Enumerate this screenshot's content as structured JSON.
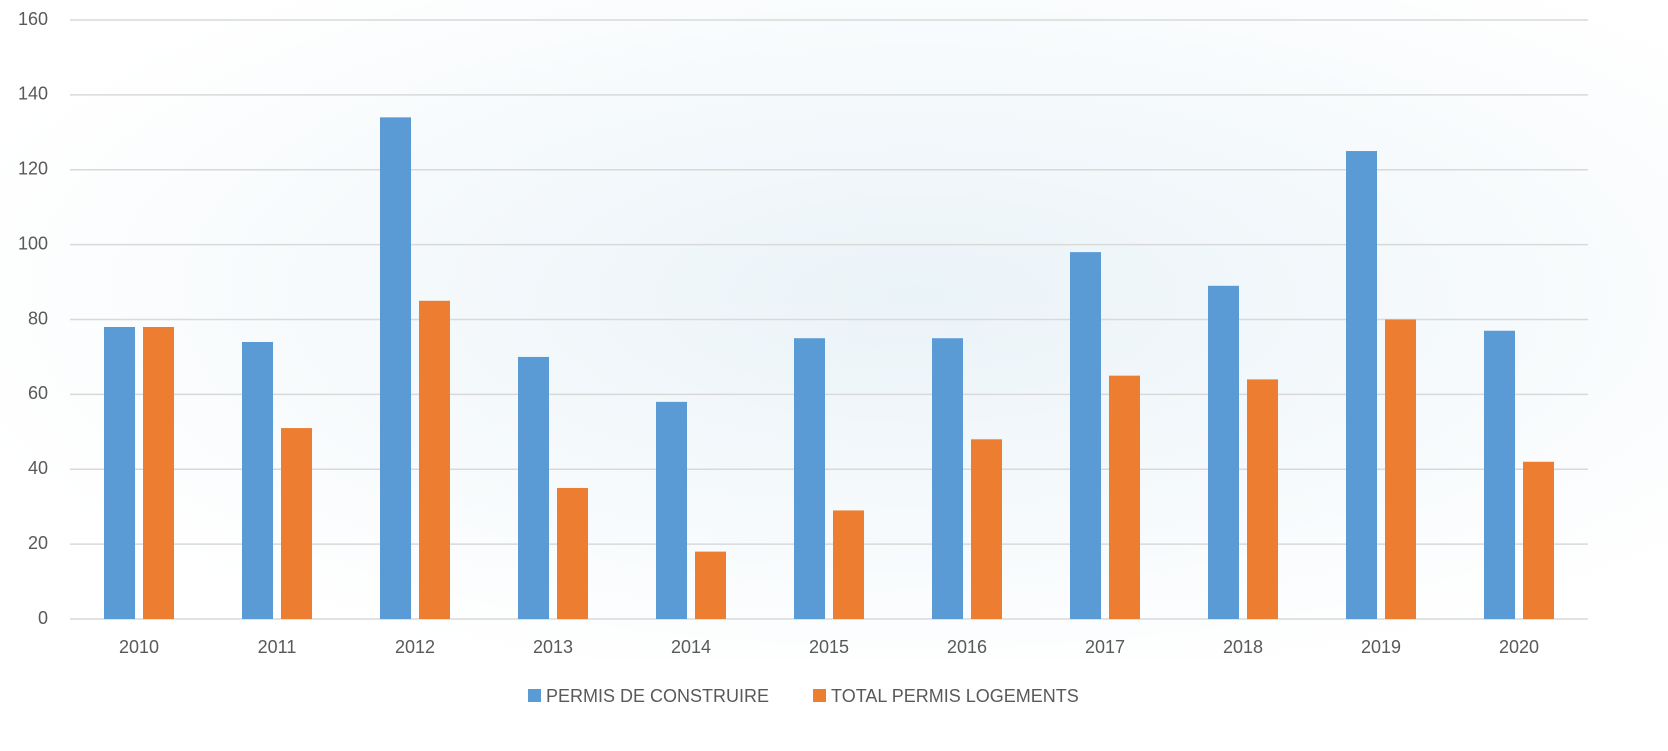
{
  "chart_data": {
    "type": "bar",
    "categories": [
      "2010",
      "2011",
      "2012",
      "2013",
      "2014",
      "2015",
      "2016",
      "2017",
      "2018",
      "2019",
      "2020"
    ],
    "series": [
      {
        "name": "PERMIS DE CONSTRUIRE",
        "color": "#5b9bd5",
        "values": [
          78,
          74,
          134,
          70,
          58,
          75,
          75,
          98,
          89,
          125,
          77
        ]
      },
      {
        "name": "TOTAL PERMIS LOGEMENTS",
        "color": "#ed7d31",
        "values": [
          78,
          51,
          85,
          35,
          18,
          29,
          48,
          65,
          64,
          80,
          42
        ]
      }
    ],
    "ylim": [
      0,
      160
    ],
    "yticks": [
      0,
      20,
      40,
      60,
      80,
      100,
      120,
      140,
      160
    ],
    "grid": true,
    "legend": "bottom"
  }
}
